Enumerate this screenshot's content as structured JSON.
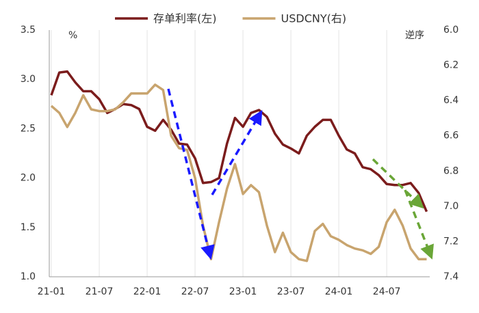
{
  "chart_data": {
    "type": "line",
    "categories": [
      "21-01",
      null,
      null,
      null,
      null,
      null,
      "21-07",
      null,
      null,
      null,
      null,
      null,
      "22-01",
      null,
      null,
      null,
      null,
      null,
      "22-07",
      null,
      null,
      null,
      null,
      null,
      "23-01",
      null,
      null,
      null,
      null,
      null,
      "23-07",
      null,
      null,
      null,
      null,
      null,
      "24-01",
      null,
      null,
      null,
      null,
      null,
      "24-07",
      null,
      null,
      null,
      null,
      null
    ],
    "series": [
      {
        "name": "存单利率(左)",
        "color": "#7b1c1c",
        "axis": "y",
        "values": [
          2.84,
          3.07,
          3.08,
          2.97,
          2.88,
          2.88,
          2.8,
          2.66,
          2.7,
          2.75,
          2.74,
          2.7,
          2.52,
          2.48,
          2.59,
          2.49,
          2.35,
          2.34,
          2.2,
          1.95,
          1.96,
          2.0,
          2.35,
          2.61,
          2.52,
          2.66,
          2.69,
          2.62,
          2.45,
          2.34,
          2.3,
          2.25,
          2.43,
          2.52,
          2.59,
          2.59,
          2.43,
          2.29,
          2.25,
          2.11,
          2.09,
          2.03,
          1.94,
          1.93,
          1.93,
          1.95,
          1.85,
          1.66
        ]
      },
      {
        "name": "USDCNY(右)",
        "color": "#c8a46e",
        "axis": "y2",
        "values": [
          6.43,
          6.47,
          6.55,
          6.47,
          6.37,
          6.45,
          6.46,
          6.46,
          6.45,
          6.41,
          6.36,
          6.36,
          6.36,
          6.31,
          6.34,
          6.6,
          6.67,
          6.68,
          6.84,
          7.11,
          7.3,
          7.09,
          6.9,
          6.76,
          6.93,
          6.88,
          6.92,
          7.11,
          7.26,
          7.15,
          7.26,
          7.3,
          7.31,
          7.14,
          7.1,
          7.17,
          7.19,
          7.22,
          7.24,
          7.25,
          7.27,
          7.23,
          7.09,
          7.02,
          7.11,
          7.24,
          7.3,
          7.3
        ]
      }
    ],
    "ylim": [
      1.0,
      3.5
    ],
    "yticks": [
      {
        "value": 1,
        "label": "1.0"
      },
      1.5,
      {
        "value": 2,
        "label": "2.0"
      },
      2.5,
      {
        "value": 3,
        "label": "3.0"
      },
      3.5
    ],
    "y2lim": [
      6.0,
      7.4
    ],
    "y2ticks": [
      {
        "value": 6,
        "label": "6.0"
      },
      6.2,
      6.4,
      6.6,
      6.8,
      {
        "value": 7,
        "label": "7.0"
      },
      7.2,
      7.4
    ],
    "y2_reversed": true,
    "y_unit_label": "%",
    "y2_note": "逆序",
    "xgrid": true,
    "legend": "top"
  }
}
